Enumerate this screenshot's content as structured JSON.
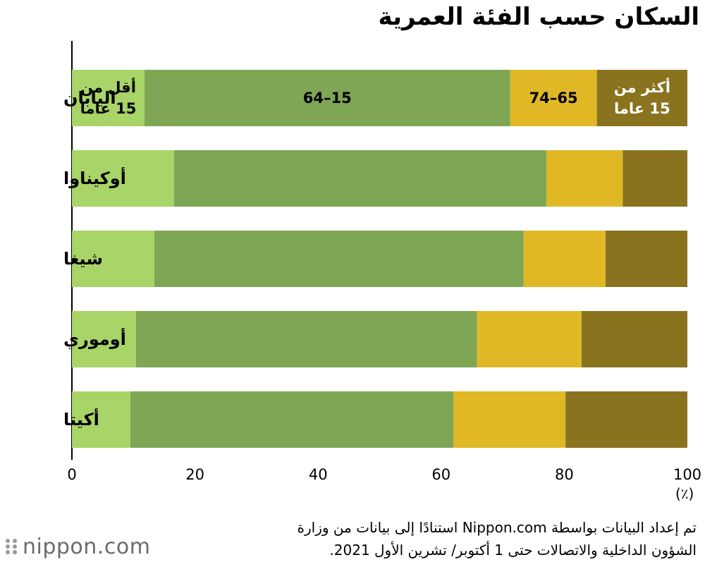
{
  "title": "السكان حسب الفئة العمرية",
  "unit": "(٪)",
  "source": {
    "line1": "تم إعداد البيانات بواسطة Nippon.com استنادًا إلى بيانات من وزارة",
    "line2": "الشؤون الداخلية والاتصالات حتى 1 أكتوبر/ تشرين الأول 2021."
  },
  "logo": {
    "text": "nippon.com"
  },
  "chart_data": {
    "type": "bar",
    "orientation": "horizontal",
    "stacked": true,
    "categories": [
      "اليابان",
      "أوكيناوا",
      "شيغا",
      "أوموري",
      "أكيتا"
    ],
    "series": [
      {
        "name": "أقل من 15 عاما",
        "label_lines": [
          "أقل من",
          "15 عاما"
        ],
        "color": "#a8d468",
        "label_color": "#000000",
        "values": [
          11.8,
          16.6,
          13.4,
          10.4,
          9.5
        ]
      },
      {
        "name": "15–64",
        "label_lines": [
          "15–64"
        ],
        "color": "#7ea655",
        "label_color": "#000000",
        "values": [
          59.4,
          60.5,
          60.0,
          55.4,
          52.5
        ]
      },
      {
        "name": "65–74",
        "label_lines": [
          "65–74"
        ],
        "color": "#e0b826",
        "label_color": "#000000",
        "values": [
          14.1,
          12.4,
          13.3,
          17.0,
          18.2
        ]
      },
      {
        "name": "أكثر من 15 عاما",
        "label_lines": [
          "أكثر من",
          "15 عاما"
        ],
        "color": "#8a731f",
        "label_color": "#ffffff",
        "values": [
          14.7,
          10.5,
          13.3,
          17.2,
          19.8
        ]
      }
    ],
    "xlim": [
      0,
      100
    ],
    "x_ticks": [
      0,
      20,
      40,
      60,
      80,
      100
    ],
    "segment_labels_on_category": "اليابان",
    "grid": false
  }
}
